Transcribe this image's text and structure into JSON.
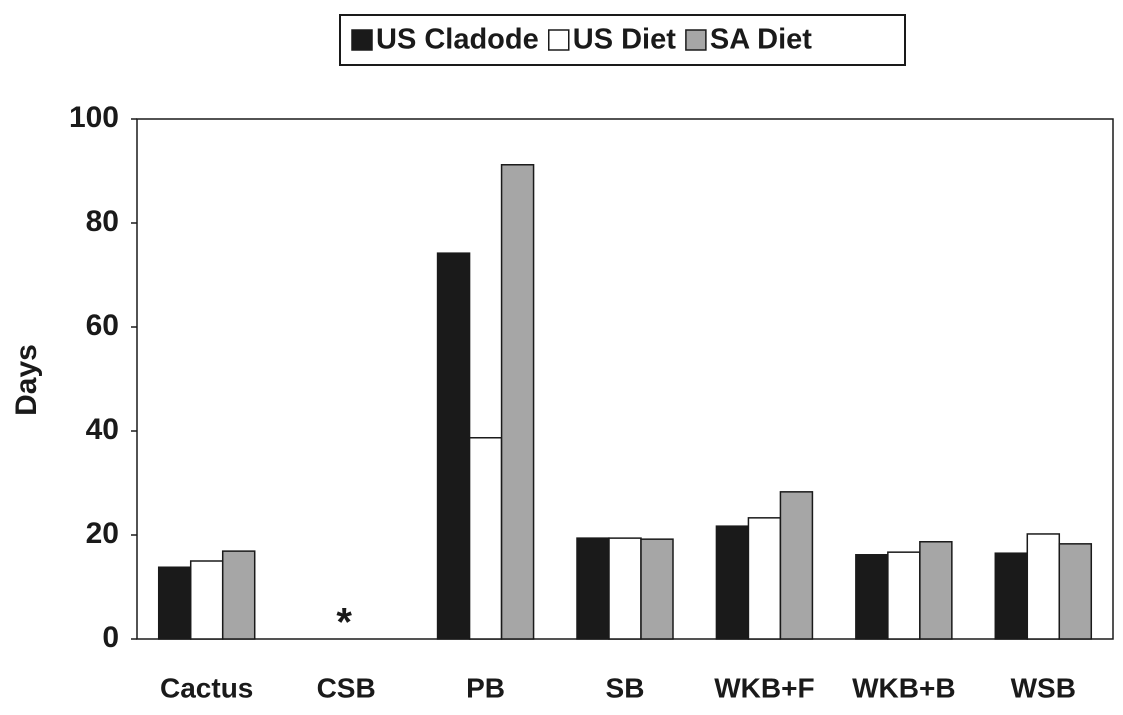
{
  "chart_data": {
    "type": "bar",
    "categories": [
      "Cactus",
      "CSB",
      "PB",
      "SB",
      "WKB+F",
      "WKB+B",
      "WSB"
    ],
    "series": [
      {
        "name": "US Cladode",
        "color": "#1a1a1a",
        "values": [
          13.8,
          null,
          74.2,
          19.4,
          21.7,
          16.2,
          16.5
        ]
      },
      {
        "name": "US Diet",
        "color": "#ffffff",
        "values": [
          15,
          null,
          38.7,
          19.4,
          23.3,
          16.7,
          20.2
        ]
      },
      {
        "name": "SA Diet",
        "color": "#a6a6a6",
        "values": [
          16.9,
          null,
          91.2,
          19.2,
          28.3,
          18.7,
          18.3
        ]
      }
    ],
    "ylabel": "Days",
    "annotation": "*",
    "ylim": [
      0,
      100
    ],
    "yticks": [
      0,
      20,
      40,
      60,
      80,
      100
    ],
    "grid": false,
    "legend": "top"
  }
}
